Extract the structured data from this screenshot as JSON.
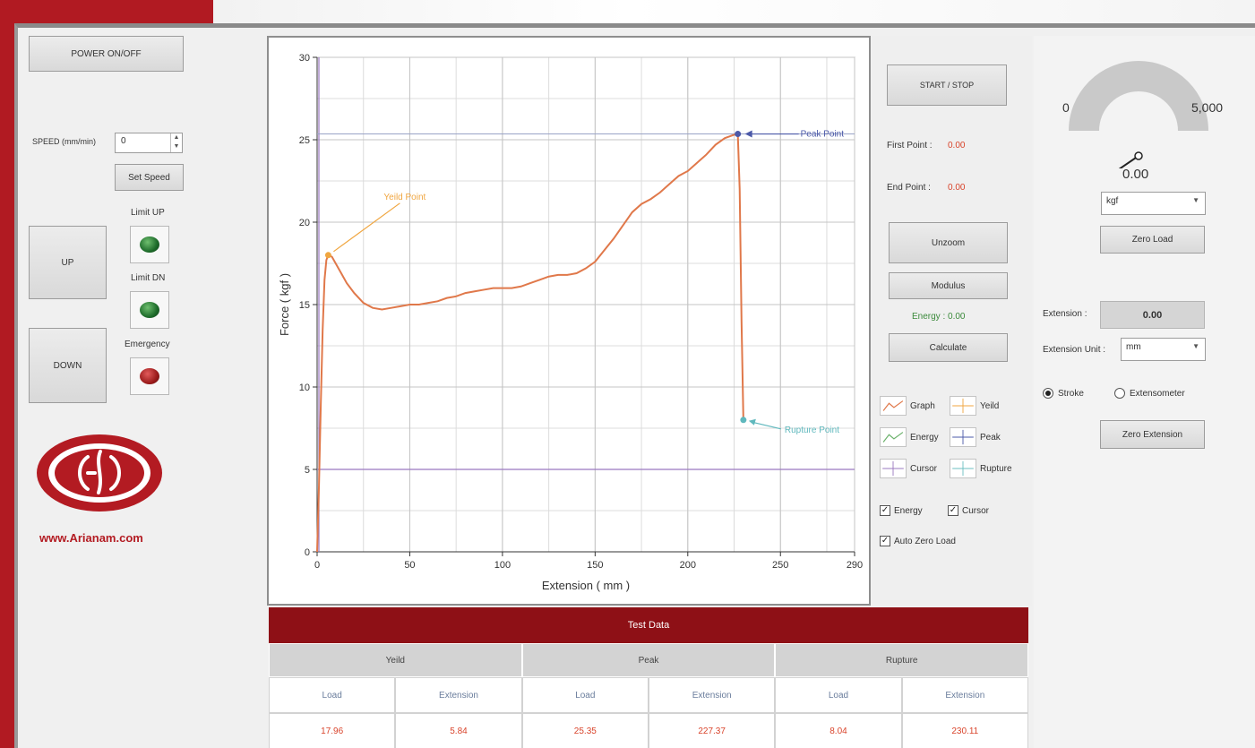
{
  "colors": {
    "brand_red": "#b11a22",
    "table_header": "#8e1016",
    "graph_line": "#e0784a",
    "value_red": "#d9442b"
  },
  "left": {
    "power_label": "POWER ON/OFF",
    "speed_label": "SPEED (mm/min)",
    "speed_value": "0",
    "set_speed_label": "Set Speed",
    "up_label": "UP",
    "down_label": "DOWN",
    "limit_up_label": "Limit UP",
    "limit_dn_label": "Limit DN",
    "emergency_label": "Emergency",
    "website": "www.Arianam.com"
  },
  "chart_data": {
    "type": "line",
    "xlabel": "Extension ( mm )",
    "ylabel": "Force ( kgf )",
    "xlim": [
      0,
      290
    ],
    "ylim": [
      0,
      30
    ],
    "xticks": [
      0,
      50,
      100,
      150,
      200,
      250,
      290
    ],
    "yticks": [
      0,
      5,
      10,
      15,
      20,
      25,
      30
    ],
    "grid": true,
    "series": [
      {
        "name": "Graph",
        "x": [
          0,
          1,
          2,
          3,
          4,
          5,
          6,
          8,
          10,
          13,
          16,
          20,
          25,
          30,
          35,
          40,
          45,
          50,
          55,
          60,
          65,
          70,
          75,
          80,
          85,
          90,
          95,
          100,
          105,
          110,
          115,
          120,
          125,
          130,
          135,
          140,
          145,
          150,
          155,
          160,
          165,
          170,
          175,
          180,
          185,
          190,
          195,
          200,
          205,
          210,
          215,
          220,
          225,
          227,
          228,
          229,
          230
        ],
        "y": [
          0,
          4,
          9,
          13.5,
          16.5,
          17.7,
          18,
          17.9,
          17.5,
          16.9,
          16.3,
          15.7,
          15.1,
          14.8,
          14.7,
          14.8,
          14.9,
          15.0,
          15.0,
          15.1,
          15.2,
          15.4,
          15.5,
          15.7,
          15.8,
          15.9,
          16.0,
          16.0,
          16.0,
          16.1,
          16.3,
          16.5,
          16.7,
          16.8,
          16.8,
          16.9,
          17.2,
          17.6,
          18.3,
          19.0,
          19.8,
          20.6,
          21.1,
          21.4,
          21.8,
          22.3,
          22.8,
          23.1,
          23.6,
          24.1,
          24.7,
          25.1,
          25.3,
          25.35,
          22,
          14,
          8
        ]
      }
    ],
    "annotations": [
      {
        "label": "Yeild Point",
        "x": 6,
        "y": 18
      },
      {
        "label": "Peak Point",
        "x": 227,
        "y": 25.35
      },
      {
        "label": "Rupture Point",
        "x": 230,
        "y": 8
      }
    ]
  },
  "mid": {
    "start_stop_label": "START / STOP",
    "first_point_label": "First Point :",
    "first_point_value": "0.00",
    "end_point_label": "End Point :",
    "end_point_value": "0.00",
    "unzoom_label": "Unzoom",
    "modulus_label": "Modulus",
    "energy_text": "Energy : 0.00",
    "calculate_label": "Calculate",
    "legend": [
      "Graph",
      "Yeild",
      "Energy",
      "Peak",
      "Cursor",
      "Rupture"
    ],
    "check_energy": "Energy",
    "check_cursor": "Cursor",
    "check_auto_zero": "Auto Zero Load"
  },
  "right": {
    "gauge_min": "0",
    "gauge_max": "5,000",
    "gauge_value": "0.00",
    "gauge_level": 0,
    "unit_select": "kgf",
    "zero_load_label": "Zero Load",
    "extension_label": "Extension :",
    "extension_value": "0.00",
    "extension_unit_label": "Extension Unit :",
    "extension_unit_value": "mm",
    "radio_stroke": "Stroke",
    "radio_extensometer": "Extensometer",
    "zero_extension_label": "Zero Extension"
  },
  "test_data": {
    "title": "Test Data",
    "groups": [
      "Yeild",
      "Peak",
      "Rupture"
    ],
    "subheaders": [
      "Load",
      "Extension",
      "Load",
      "Extension",
      "Load",
      "Extension"
    ],
    "values": [
      "17.96",
      "5.84",
      "25.35",
      "227.37",
      "8.04",
      "230.11"
    ]
  }
}
